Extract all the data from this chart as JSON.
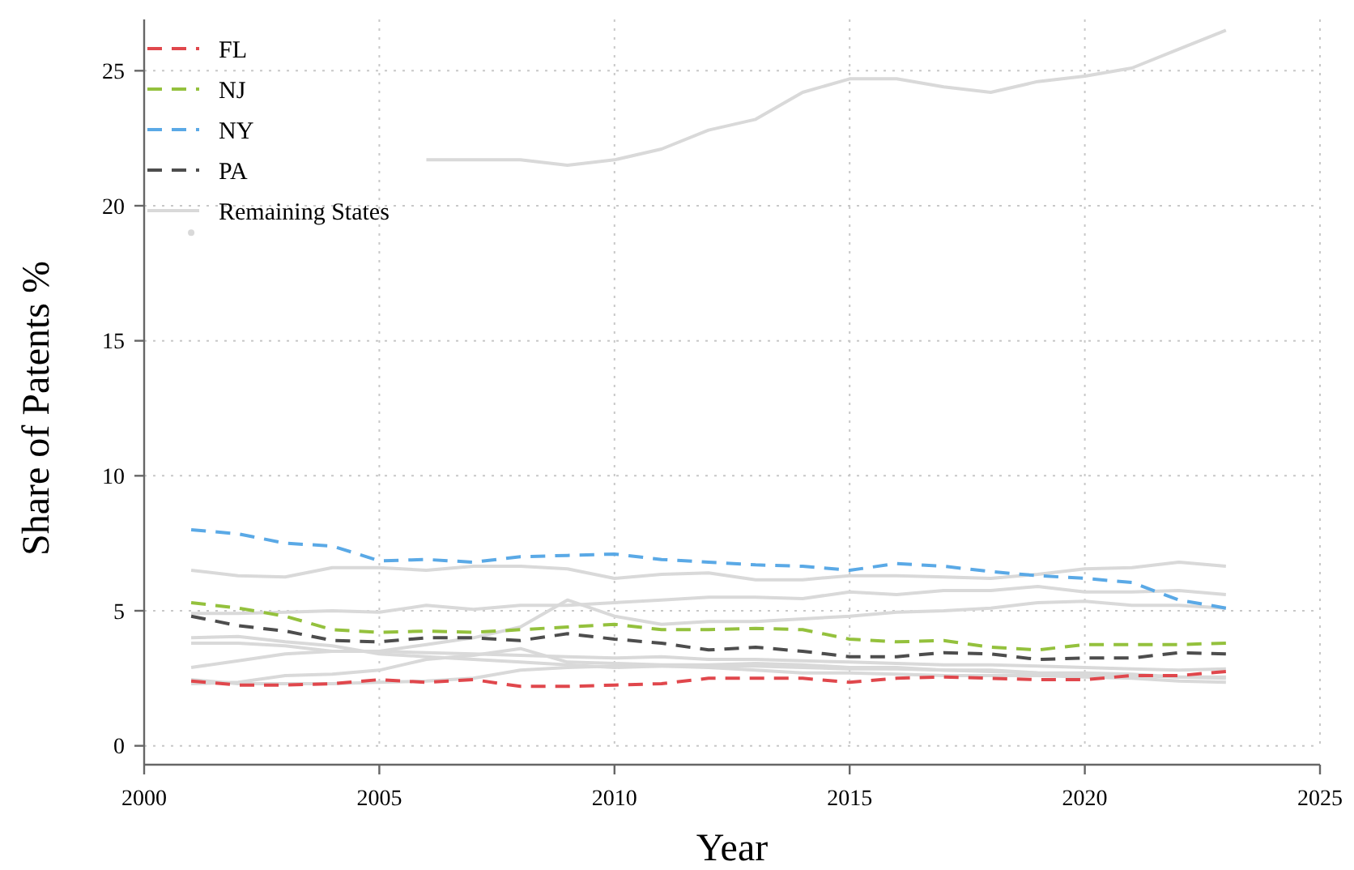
{
  "chart_data": {
    "type": "line",
    "xlabel": "Year",
    "ylabel": "Share of Patents %",
    "x": [
      2001,
      2002,
      2003,
      2004,
      2005,
      2006,
      2007,
      2008,
      2009,
      2010,
      2011,
      2012,
      2013,
      2014,
      2015,
      2016,
      2017,
      2018,
      2019,
      2020,
      2021,
      2022,
      2023
    ],
    "xlim": [
      2000,
      2025
    ],
    "xticks": [
      2000,
      2005,
      2010,
      2015,
      2020,
      2025
    ],
    "ylim": [
      -0.7,
      26.9
    ],
    "yticks": [
      0,
      5,
      10,
      15,
      20,
      25
    ],
    "grid": true,
    "legend": "top left",
    "series": [
      {
        "name": "FL",
        "color": "#e0474c",
        "line_style": "dashed",
        "values": [
          2.4,
          2.25,
          2.25,
          2.3,
          2.45,
          2.35,
          2.45,
          2.2,
          2.2,
          2.25,
          2.3,
          2.5,
          2.5,
          2.5,
          2.35,
          2.5,
          2.55,
          2.5,
          2.45,
          2.45,
          2.6,
          2.6,
          2.75
        ]
      },
      {
        "name": "NJ",
        "color": "#94c13d",
        "line_style": "dashed",
        "values": [
          5.3,
          5.1,
          4.8,
          4.3,
          4.2,
          4.25,
          4.2,
          4.3,
          4.4,
          4.5,
          4.3,
          4.3,
          4.35,
          4.3,
          3.95,
          3.85,
          3.9,
          3.65,
          3.55,
          3.75,
          3.75,
          3.75,
          3.8
        ]
      },
      {
        "name": "NY",
        "color": "#5aa9e6",
        "line_style": "dashed",
        "values": [
          8.0,
          7.85,
          7.5,
          7.4,
          6.85,
          6.9,
          6.8,
          7.0,
          7.05,
          7.1,
          6.9,
          6.8,
          6.7,
          6.65,
          6.5,
          6.75,
          6.65,
          6.45,
          6.3,
          6.2,
          6.05,
          5.4,
          5.1
        ]
      },
      {
        "name": "PA",
        "color": "#4d4d4d",
        "line_style": "dashed",
        "values": [
          4.8,
          4.45,
          4.25,
          3.9,
          3.85,
          4.0,
          4.0,
          3.9,
          4.15,
          3.95,
          3.8,
          3.55,
          3.65,
          3.5,
          3.3,
          3.3,
          3.45,
          3.4,
          3.2,
          3.25,
          3.25,
          3.45,
          3.4
        ]
      },
      {
        "name": "Remaining States",
        "color": "#d9d9d9",
        "line_style": "solid",
        "values": [
          19.0,
          null,
          null,
          null,
          null,
          21.7,
          21.7,
          21.7,
          21.5,
          21.7,
          22.1,
          22.8,
          23.2,
          24.2,
          24.7,
          24.7,
          24.4,
          24.2,
          24.6,
          24.8,
          25.1,
          25.8,
          26.5
        ]
      },
      {
        "color": "#d9d9d9",
        "line_style": "solid",
        "values": [
          6.5,
          6.3,
          6.25,
          6.6,
          6.6,
          6.5,
          6.65,
          6.65,
          6.55,
          6.2,
          6.35,
          6.4,
          6.15,
          6.15,
          6.3,
          6.3,
          6.25,
          6.2,
          6.35,
          6.55,
          6.6,
          6.8,
          6.65
        ]
      },
      {
        "color": "#d9d9d9",
        "line_style": "solid",
        "values": [
          4.9,
          4.9,
          4.95,
          5.0,
          4.95,
          5.2,
          5.05,
          5.2,
          5.2,
          5.3,
          5.4,
          5.5,
          5.5,
          5.45,
          5.7,
          5.6,
          5.75,
          5.75,
          5.9,
          5.7,
          5.7,
          5.75,
          5.6
        ]
      },
      {
        "color": "#d9d9d9",
        "line_style": "solid",
        "values": [
          2.9,
          3.15,
          3.4,
          3.5,
          3.5,
          3.75,
          4.0,
          4.4,
          5.4,
          4.8,
          4.5,
          4.6,
          4.6,
          4.7,
          4.8,
          4.95,
          5.0,
          5.1,
          5.3,
          5.35,
          5.2,
          5.2,
          5.1
        ]
      },
      {
        "color": "#d9d9d9",
        "line_style": "solid",
        "values": [
          4.0,
          4.05,
          3.85,
          3.7,
          3.4,
          3.3,
          3.2,
          3.1,
          3.0,
          2.9,
          2.95,
          2.95,
          2.95,
          2.9,
          2.85,
          2.85,
          2.8,
          2.75,
          2.7,
          2.7,
          2.65,
          2.55,
          2.5
        ]
      },
      {
        "color": "#d9d9d9",
        "line_style": "solid",
        "values": [
          3.8,
          3.8,
          3.7,
          3.5,
          3.5,
          3.45,
          3.4,
          3.35,
          3.3,
          3.25,
          3.3,
          3.2,
          3.2,
          3.15,
          3.1,
          3.05,
          3.0,
          3.0,
          2.95,
          2.9,
          2.85,
          2.8,
          2.85
        ]
      },
      {
        "color": "#d9d9d9",
        "line_style": "solid",
        "values": [
          2.3,
          2.35,
          2.6,
          2.65,
          2.8,
          3.2,
          3.35,
          3.6,
          3.1,
          3.05,
          3.0,
          3.0,
          3.05,
          3.0,
          2.9,
          2.9,
          2.8,
          2.8,
          2.7,
          2.65,
          2.6,
          2.55,
          2.55
        ]
      },
      {
        "color": "#d9d9d9",
        "line_style": "solid",
        "values": [
          2.45,
          2.3,
          2.3,
          2.3,
          2.35,
          2.4,
          2.5,
          2.8,
          2.9,
          2.95,
          2.95,
          2.9,
          2.8,
          2.7,
          2.7,
          2.65,
          2.6,
          2.6,
          2.6,
          2.55,
          2.5,
          2.4,
          2.35
        ]
      }
    ]
  }
}
